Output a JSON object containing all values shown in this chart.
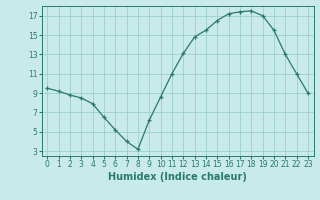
{
  "x": [
    0,
    1,
    2,
    3,
    4,
    5,
    6,
    7,
    8,
    9,
    10,
    11,
    12,
    13,
    14,
    15,
    16,
    17,
    18,
    19,
    20,
    21,
    22,
    23
  ],
  "y": [
    9.5,
    9.2,
    8.8,
    8.5,
    7.9,
    6.5,
    5.2,
    4.0,
    3.2,
    6.2,
    8.6,
    11.0,
    13.1,
    14.8,
    15.5,
    16.5,
    17.2,
    17.4,
    17.5,
    17.0,
    15.5,
    13.0,
    11.0,
    9.0
  ],
  "xlabel": "Humidex (Indice chaleur)",
  "xlim": [
    -0.5,
    23.5
  ],
  "ylim": [
    2.5,
    18.0
  ],
  "yticks": [
    3,
    5,
    7,
    9,
    11,
    13,
    15,
    17
  ],
  "xticks": [
    0,
    1,
    2,
    3,
    4,
    5,
    6,
    7,
    8,
    9,
    10,
    11,
    12,
    13,
    14,
    15,
    16,
    17,
    18,
    19,
    20,
    21,
    22,
    23
  ],
  "line_color": "#2a7a6a",
  "marker": "+",
  "bg_color": "#c8eaea",
  "grid_color": "#9bcece",
  "tick_fontsize": 5.5,
  "xlabel_fontsize": 7.0,
  "marker_size": 3.5,
  "linewidth": 0.9
}
